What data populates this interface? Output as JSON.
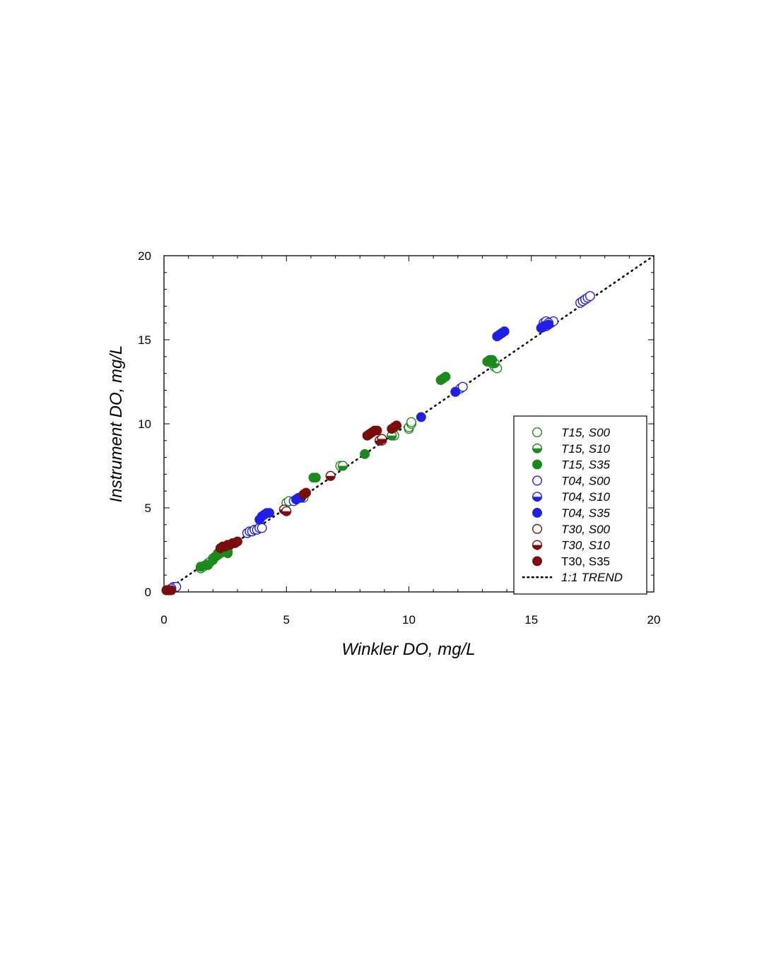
{
  "chart_data": {
    "type": "scatter",
    "xlabel": "Winkler DO, mg/L",
    "ylabel": "Instrument DO, mg/L",
    "xlim": [
      0,
      20
    ],
    "ylim": [
      0,
      20
    ],
    "x_ticks": [
      "0",
      "5",
      "10",
      "15",
      "20"
    ],
    "y_ticks": [
      "0",
      "5",
      "10",
      "15",
      "20"
    ],
    "grid": false,
    "legend_position": "bottom-right",
    "colors": {
      "green": "#1a8a1a",
      "blue": "#1f1fe6",
      "red": "#7a0d0d"
    },
    "trend": {
      "name": "1:1 TREND",
      "style": "dotted",
      "points": [
        [
          0,
          0
        ],
        [
          20,
          20
        ]
      ]
    },
    "series": [
      {
        "name": "T15, S00",
        "color": "#1a8a1a",
        "marker": "open",
        "points": [
          [
            5.0,
            5.3
          ],
          [
            5.1,
            5.4
          ],
          [
            5.7,
            5.6
          ],
          [
            7.2,
            7.5
          ],
          [
            7.3,
            7.5
          ],
          [
            9.3,
            9.3
          ],
          [
            9.4,
            9.3
          ],
          [
            10.0,
            9.7
          ],
          [
            10.0,
            9.8
          ],
          [
            10.1,
            10.0
          ],
          [
            10.1,
            10.1
          ],
          [
            13.5,
            13.4
          ],
          [
            13.6,
            13.3
          ],
          [
            13.4,
            13.6
          ],
          [
            1.5,
            1.4
          ],
          [
            1.6,
            1.5
          ],
          [
            1.5,
            1.5
          ]
        ]
      },
      {
        "name": "T15, S10",
        "color": "#1a8a1a",
        "marker": "half",
        "points": [
          [
            1.8,
            1.7
          ],
          [
            1.9,
            1.8
          ],
          [
            2.0,
            2.0
          ],
          [
            2.1,
            2.1
          ],
          [
            2.2,
            2.2
          ],
          [
            2.3,
            2.3
          ],
          [
            2.4,
            2.4
          ],
          [
            2.5,
            2.5
          ],
          [
            2.6,
            2.4
          ],
          [
            7.3,
            7.5
          ],
          [
            9.3,
            9.3
          ],
          [
            13.3,
            13.7
          ],
          [
            13.5,
            13.6
          ]
        ]
      },
      {
        "name": "T15, S35",
        "color": "#1a8a1a",
        "marker": "filled",
        "points": [
          [
            1.5,
            1.5
          ],
          [
            1.7,
            1.6
          ],
          [
            1.8,
            1.6
          ],
          [
            2.0,
            1.9
          ],
          [
            2.1,
            2.1
          ],
          [
            2.2,
            2.3
          ],
          [
            2.3,
            2.4
          ],
          [
            2.5,
            2.4
          ],
          [
            2.6,
            2.3
          ],
          [
            6.1,
            6.8
          ],
          [
            6.2,
            6.8
          ],
          [
            8.2,
            8.2
          ],
          [
            11.3,
            12.6
          ],
          [
            11.4,
            12.7
          ],
          [
            11.5,
            12.8
          ],
          [
            13.2,
            13.7
          ],
          [
            13.3,
            13.8
          ],
          [
            13.4,
            13.8
          ]
        ]
      },
      {
        "name": "T04, S00",
        "color": "#1f1fe6",
        "marker": "open",
        "points": [
          [
            0.4,
            0.3
          ],
          [
            0.5,
            0.3
          ],
          [
            3.4,
            3.5
          ],
          [
            3.5,
            3.6
          ],
          [
            3.6,
            3.6
          ],
          [
            3.7,
            3.7
          ],
          [
            3.8,
            3.7
          ],
          [
            3.9,
            3.8
          ],
          [
            4.0,
            3.8
          ],
          [
            5.3,
            5.4
          ],
          [
            5.4,
            5.5
          ],
          [
            11.9,
            11.9
          ],
          [
            12.1,
            12.1
          ],
          [
            12.2,
            12.2
          ],
          [
            15.6,
            15.8
          ],
          [
            15.8,
            16.0
          ],
          [
            15.9,
            16.1
          ],
          [
            17.0,
            17.2
          ],
          [
            17.1,
            17.3
          ],
          [
            17.2,
            17.4
          ],
          [
            17.3,
            17.5
          ],
          [
            17.4,
            17.6
          ]
        ]
      },
      {
        "name": "T04, S10",
        "color": "#1f1fe6",
        "marker": "half",
        "points": [
          [
            0.3,
            0.2
          ],
          [
            15.5,
            16.0
          ],
          [
            15.6,
            16.1
          ],
          [
            15.7,
            16.0
          ]
        ]
      },
      {
        "name": "T04, S35",
        "color": "#1f1fe6",
        "marker": "filled",
        "points": [
          [
            3.9,
            4.3
          ],
          [
            4.0,
            4.5
          ],
          [
            4.1,
            4.6
          ],
          [
            4.2,
            4.7
          ],
          [
            4.3,
            4.7
          ],
          [
            5.4,
            5.5
          ],
          [
            5.5,
            5.6
          ],
          [
            5.6,
            5.6
          ],
          [
            10.5,
            10.4
          ],
          [
            11.9,
            11.9
          ],
          [
            13.6,
            15.2
          ],
          [
            13.7,
            15.3
          ],
          [
            13.8,
            15.4
          ],
          [
            13.9,
            15.5
          ],
          [
            15.4,
            15.7
          ],
          [
            15.5,
            15.8
          ],
          [
            15.7,
            15.9
          ]
        ]
      },
      {
        "name": "T30, S00",
        "color": "#7a0d0d",
        "marker": "open",
        "points": [
          [
            0.1,
            0.1
          ],
          [
            0.2,
            0.1
          ],
          [
            6.8,
            6.9
          ],
          [
            8.9,
            9.0
          ]
        ]
      },
      {
        "name": "T30, S10",
        "color": "#7a0d0d",
        "marker": "half",
        "points": [
          [
            0.2,
            0.1
          ],
          [
            4.9,
            4.9
          ],
          [
            5.0,
            4.8
          ],
          [
            6.8,
            6.9
          ],
          [
            8.8,
            9.0
          ],
          [
            8.9,
            9.1
          ]
        ]
      },
      {
        "name": "T30, S35",
        "color": "#7a0d0d",
        "marker": "filled",
        "points": [
          [
            0.1,
            0.1
          ],
          [
            0.2,
            0.1
          ],
          [
            0.3,
            0.1
          ],
          [
            2.3,
            2.6
          ],
          [
            2.4,
            2.7
          ],
          [
            2.5,
            2.7
          ],
          [
            2.6,
            2.8
          ],
          [
            2.7,
            2.8
          ],
          [
            2.8,
            2.9
          ],
          [
            2.9,
            2.9
          ],
          [
            3.0,
            3.0
          ],
          [
            5.7,
            5.8
          ],
          [
            5.8,
            5.9
          ],
          [
            8.3,
            9.3
          ],
          [
            8.4,
            9.4
          ],
          [
            8.5,
            9.5
          ],
          [
            8.6,
            9.6
          ],
          [
            8.7,
            9.6
          ],
          [
            9.3,
            9.7
          ],
          [
            9.4,
            9.8
          ],
          [
            9.5,
            9.9
          ]
        ]
      }
    ]
  }
}
